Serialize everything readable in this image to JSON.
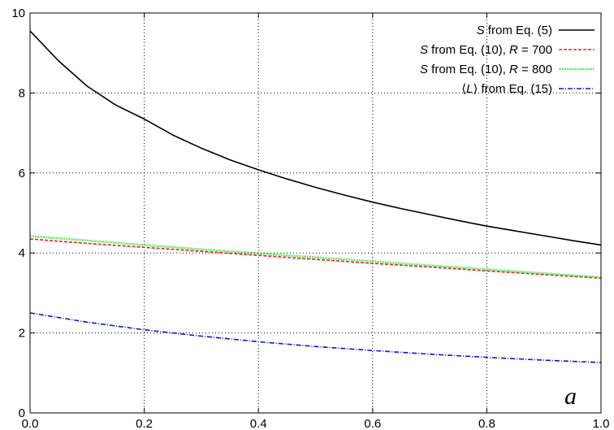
{
  "chart_data": {
    "type": "line",
    "xlim": [
      0.0,
      1.0
    ],
    "ylim": [
      0,
      10
    ],
    "x_ticks": [
      "0.0",
      "0.2",
      "0.4",
      "0.6",
      "0.8",
      "1.0"
    ],
    "x_tick_values": [
      0.0,
      0.2,
      0.4,
      0.6,
      0.8,
      1.0
    ],
    "y_ticks": [
      "0",
      "2",
      "4",
      "6",
      "8",
      "10"
    ],
    "y_tick_values": [
      0,
      2,
      4,
      6,
      8,
      10
    ],
    "grid": true,
    "legend_position": "top-right",
    "annotation": "a",
    "series": [
      {
        "name": "S from Eq. (5)",
        "legend": {
          "italic": "S",
          "rest": " from Eq. (5)"
        },
        "color": "#000000",
        "style": "solid",
        "x": [
          0.0,
          0.05,
          0.1,
          0.15,
          0.2,
          0.25,
          0.3,
          0.35,
          0.4,
          0.45,
          0.5,
          0.55,
          0.6,
          0.65,
          0.7,
          0.75,
          0.8,
          0.85,
          0.9,
          0.95,
          1.0
        ],
        "y": [
          9.55,
          8.8,
          8.17,
          7.7,
          7.35,
          6.95,
          6.62,
          6.33,
          6.08,
          5.85,
          5.64,
          5.45,
          5.27,
          5.11,
          4.96,
          4.81,
          4.67,
          4.55,
          4.43,
          4.31,
          4.2
        ]
      },
      {
        "name": "S from Eq. (10), R = 700",
        "legend": {
          "italic": "S",
          "rest": " from Eq. (10), ",
          "italic2": "R",
          "rest2": " = 700"
        },
        "color": "#e8201c",
        "style": "dashed",
        "x": [
          0.0,
          0.1,
          0.2,
          0.3,
          0.4,
          0.5,
          0.6,
          0.7,
          0.8,
          0.9,
          1.0
        ],
        "y": [
          4.35,
          4.24,
          4.14,
          4.04,
          3.94,
          3.84,
          3.74,
          3.65,
          3.55,
          3.46,
          3.37
        ]
      },
      {
        "name": "S from Eq. (10), R = 800",
        "legend": {
          "italic": "S",
          "rest": " from Eq. (10), ",
          "italic2": "R",
          "rest2": " = 800"
        },
        "color": "#33dd33",
        "style": "dotted",
        "x": [
          0.0,
          0.1,
          0.2,
          0.3,
          0.4,
          0.5,
          0.6,
          0.7,
          0.8,
          0.9,
          1.0
        ],
        "y": [
          4.42,
          4.31,
          4.2,
          4.09,
          3.99,
          3.89,
          3.79,
          3.69,
          3.59,
          3.49,
          3.39
        ]
      },
      {
        "name": "⟨L⟩ from Eq. (15)",
        "legend": {
          "pre": "⟨",
          "italic": "L",
          "rest": "⟩ from Eq. (15)"
        },
        "color": "#1010e0",
        "style": "dashdot",
        "x": [
          0.0,
          0.1,
          0.2,
          0.3,
          0.4,
          0.5,
          0.6,
          0.7,
          0.8,
          0.9,
          1.0
        ],
        "y": [
          2.5,
          2.27,
          2.08,
          1.92,
          1.78,
          1.66,
          1.56,
          1.47,
          1.39,
          1.32,
          1.26
        ]
      }
    ]
  }
}
